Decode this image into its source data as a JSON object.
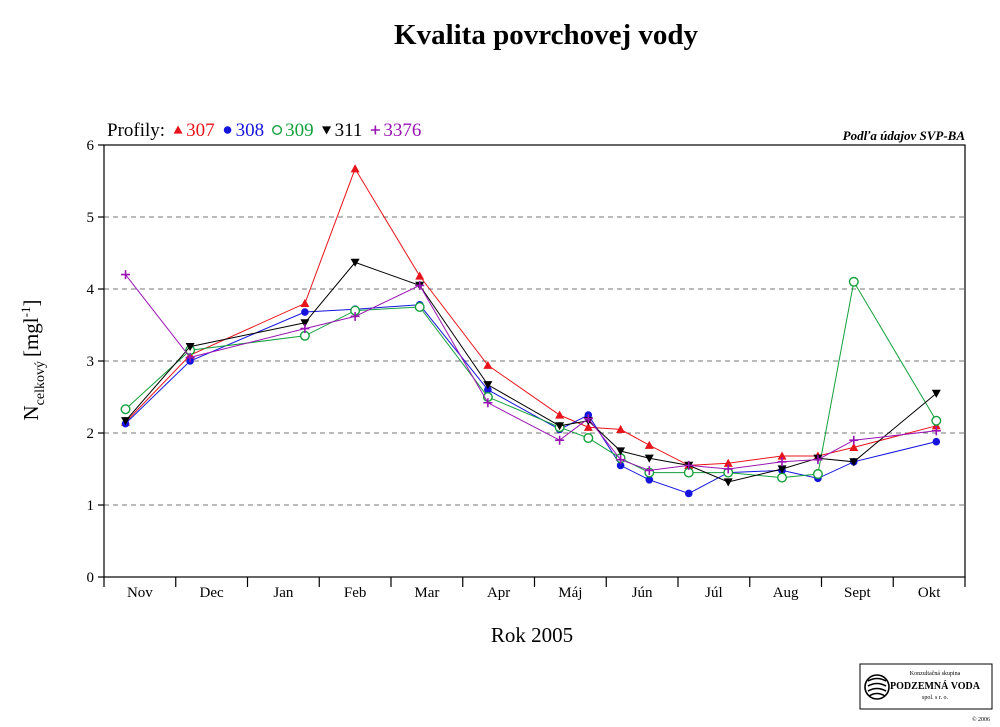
{
  "chart_data": {
    "type": "line",
    "title": "Kvalita povrchovej vody",
    "xlabel": "Rok 2005",
    "ylabel_main": "N",
    "ylabel_sub": "celkový",
    "ylabel_unit": "[mgl",
    "ylabel_sup": "-1",
    "ylabel_close": "]",
    "source_note": "Podľa údajov SVP-BA",
    "legend_prefix": "Profily:",
    "legend_position": "top-left",
    "categories": [
      "Nov",
      "Dec",
      "Jan",
      "Feb",
      "Mar",
      "Apr",
      "Máj",
      "Jún",
      "Júl",
      "Aug",
      "Sept",
      "Okt"
    ],
    "xlim": [
      0,
      12
    ],
    "ylim": [
      0,
      6
    ],
    "yticks": [
      0,
      1,
      2,
      3,
      4,
      5,
      6
    ],
    "grid": "horizontal dashed",
    "series": [
      {
        "name": "307",
        "color": "#e8141b",
        "marker": "triangle-up",
        "points": [
          [
            0.3,
            2.15
          ],
          [
            1.2,
            3.08
          ],
          [
            2.8,
            3.8
          ],
          [
            3.5,
            5.67
          ],
          [
            4.4,
            4.18
          ],
          [
            5.35,
            2.94
          ],
          [
            6.35,
            2.25
          ],
          [
            6.75,
            2.08
          ],
          [
            7.2,
            2.05
          ],
          [
            7.6,
            1.83
          ],
          [
            8.15,
            1.55
          ],
          [
            8.7,
            1.58
          ],
          [
            9.45,
            1.68
          ],
          [
            9.95,
            1.68
          ],
          [
            10.45,
            1.8
          ],
          [
            11.6,
            2.1
          ]
        ]
      },
      {
        "name": "308",
        "color": "#1414dc",
        "marker": "circle-filled",
        "points": [
          [
            0.3,
            2.13
          ],
          [
            1.2,
            3.0
          ],
          [
            2.8,
            3.68
          ],
          [
            3.5,
            3.72
          ],
          [
            4.4,
            3.78
          ],
          [
            5.35,
            2.6
          ],
          [
            6.35,
            2.05
          ],
          [
            6.75,
            2.25
          ],
          [
            7.2,
            1.55
          ],
          [
            7.6,
            1.35
          ],
          [
            8.15,
            1.16
          ],
          [
            8.7,
            1.45
          ],
          [
            9.45,
            1.48
          ],
          [
            9.95,
            1.37
          ],
          [
            10.45,
            1.6
          ],
          [
            11.6,
            1.88
          ]
        ]
      },
      {
        "name": "309",
        "color": "#14a03c",
        "marker": "circle-open",
        "points": [
          [
            0.3,
            2.33
          ],
          [
            1.2,
            3.15
          ],
          [
            2.8,
            3.35
          ],
          [
            3.5,
            3.7
          ],
          [
            4.4,
            3.75
          ],
          [
            5.35,
            2.5
          ],
          [
            6.35,
            2.08
          ],
          [
            6.75,
            1.93
          ],
          [
            7.2,
            1.65
          ],
          [
            7.6,
            1.45
          ],
          [
            8.15,
            1.45
          ],
          [
            8.7,
            1.45
          ],
          [
            9.45,
            1.38
          ],
          [
            9.95,
            1.43
          ],
          [
            10.45,
            4.1
          ],
          [
            11.6,
            2.17
          ]
        ]
      },
      {
        "name": "311",
        "color": "#000000",
        "marker": "triangle-down",
        "points": [
          [
            0.3,
            2.17
          ],
          [
            1.2,
            3.2
          ],
          [
            2.8,
            3.53
          ],
          [
            3.5,
            4.37
          ],
          [
            4.4,
            4.05
          ],
          [
            5.35,
            2.67
          ],
          [
            6.35,
            2.1
          ],
          [
            6.75,
            2.17
          ],
          [
            7.2,
            1.75
          ],
          [
            7.6,
            1.65
          ],
          [
            8.15,
            1.55
          ],
          [
            8.7,
            1.32
          ],
          [
            9.45,
            1.5
          ],
          [
            9.95,
            1.65
          ],
          [
            10.45,
            1.6
          ],
          [
            11.6,
            2.55
          ]
        ]
      },
      {
        "name": "3376",
        "color": "#9a14b4",
        "marker": "plus",
        "points": [
          [
            0.3,
            4.2
          ],
          [
            1.2,
            3.05
          ],
          [
            2.8,
            3.45
          ],
          [
            3.5,
            3.62
          ],
          [
            4.4,
            4.05
          ],
          [
            5.35,
            2.42
          ],
          [
            6.35,
            1.9
          ],
          [
            6.75,
            2.2
          ],
          [
            7.2,
            1.63
          ],
          [
            7.6,
            1.48
          ],
          [
            8.15,
            1.55
          ],
          [
            8.7,
            1.5
          ],
          [
            9.45,
            1.6
          ],
          [
            9.95,
            1.63
          ],
          [
            10.45,
            1.9
          ],
          [
            11.6,
            2.03
          ]
        ]
      }
    ]
  },
  "logo": {
    "line1": "Konzultačná skupina",
    "line2": "PODZEMNÁ VODA",
    "line3": "spol. s r. o.",
    "copyright": "© 2006"
  }
}
